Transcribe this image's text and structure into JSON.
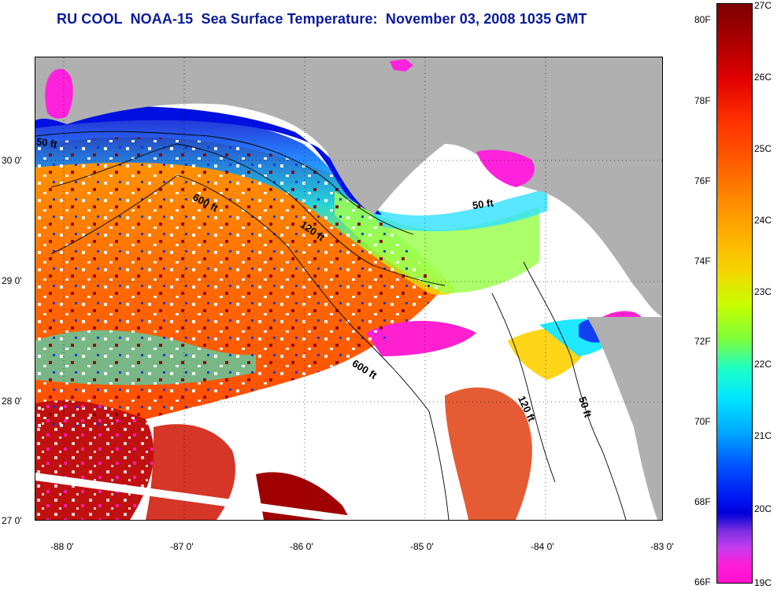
{
  "title": "RU COOL  NOAA-15  Sea Surface Temperature:  November 03, 2008 1035 GMT",
  "map": {
    "region": "Gulf of Mexico - Florida Big Bend / Panhandle",
    "lat_labels": [
      "30 0'",
      "29 0'",
      "28 0'",
      "27 0'"
    ],
    "lon_labels": [
      "-88 0'",
      "-87 0'",
      "-86 0'",
      "-85 0'",
      "-84 0'",
      "-83 0'"
    ],
    "lat_range": [
      26.97,
      30.8
    ],
    "lon_range": [
      -88.3,
      -83.1
    ],
    "bathymetry_labels": [
      "50 ft",
      "600 ft",
      "120 ft",
      "50 ft",
      "600 ft",
      "120 ft",
      "50 ft"
    ],
    "colors": {
      "land": "#b0b0b0",
      "cloud_mask": "#ffffff",
      "warm_water": "#ff7a00",
      "cool_water": "#00e0ff",
      "coldest": "#ff22dd"
    }
  },
  "colorbar": {
    "fahrenheit_labels": [
      "80F",
      "78F",
      "76F",
      "74F",
      "72F",
      "70F",
      "68F",
      "66F"
    ],
    "celsius_labels": [
      "27C",
      "26C",
      "25C",
      "24C",
      "23C",
      "22C",
      "21C",
      "20C",
      "19C"
    ],
    "range_c": [
      19,
      27
    ],
    "range_f": [
      66,
      80.6
    ]
  }
}
